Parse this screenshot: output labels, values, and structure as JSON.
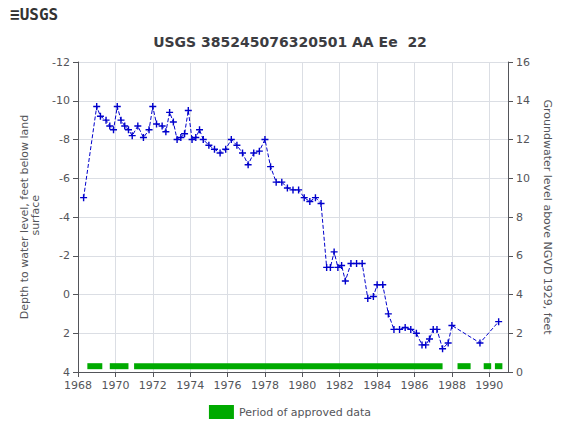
{
  "chart_data": {
    "type": "line",
    "title": "USGS 385245076320501 AA Ee  22",
    "annotations": [
      {
        "text": "≡USGS"
      }
    ],
    "ylabel": "Depth to water level, feet below land\n surface",
    "y2label": "Groundwater level above NGVD 1929, feet",
    "xlim": [
      1968,
      1991
    ],
    "xticks": [
      1968,
      1970,
      1972,
      1974,
      1976,
      1978,
      1980,
      1982,
      1984,
      1986,
      1988,
      1990
    ],
    "ylim": [
      4,
      -12
    ],
    "yticks": [
      4,
      2,
      0,
      -2,
      -4,
      -6,
      -8,
      -10,
      -12
    ],
    "y2lim": [
      0,
      16
    ],
    "y2ticks": [
      0,
      2,
      4,
      6,
      8,
      10,
      12,
      14,
      16
    ],
    "grid": true,
    "legend": "bottom",
    "x": [
      1968.3,
      1969.0,
      1969.2,
      1969.5,
      1969.7,
      1969.9,
      1970.1,
      1970.3,
      1970.5,
      1970.7,
      1970.9,
      1971.2,
      1971.5,
      1971.8,
      1972.0,
      1972.2,
      1972.5,
      1972.7,
      1972.9,
      1973.1,
      1973.3,
      1973.5,
      1973.7,
      1973.9,
      1974.1,
      1974.3,
      1974.5,
      1974.7,
      1975.0,
      1975.3,
      1975.6,
      1975.9,
      1976.2,
      1976.5,
      1976.8,
      1977.1,
      1977.4,
      1977.7,
      1978.0,
      1978.3,
      1978.6,
      1978.9,
      1979.2,
      1979.5,
      1979.8,
      1980.1,
      1980.4,
      1980.7,
      1981.0,
      1981.3,
      1981.5,
      1981.7,
      1981.9,
      1982.1,
      1982.3,
      1982.6,
      1982.9,
      1983.2,
      1983.5,
      1983.8,
      1984.0,
      1984.3,
      1984.6,
      1984.9,
      1985.2,
      1985.5,
      1985.8,
      1986.1,
      1986.4,
      1986.6,
      1986.8,
      1987.0,
      1987.2,
      1987.5,
      1987.8,
      1988.0,
      1989.5,
      1990.5
    ],
    "series": [
      {
        "type": "line",
        "color": "#0000CC",
        "line_style": "dashed",
        "marker": "plus",
        "values": [
          -5.0,
          -9.7,
          -9.2,
          -9.0,
          -8.7,
          -8.5,
          -9.7,
          -9.0,
          -8.7,
          -8.5,
          -8.2,
          -8.7,
          -8.1,
          -8.5,
          -9.7,
          -8.8,
          -8.7,
          -8.4,
          -9.4,
          -8.9,
          -8.0,
          -8.1,
          -8.3,
          -9.5,
          -8.0,
          -8.1,
          -8.5,
          -8.0,
          -7.7,
          -7.5,
          -7.3,
          -7.5,
          -8.0,
          -7.7,
          -7.3,
          -6.7,
          -7.3,
          -7.4,
          -8.0,
          -6.6,
          -5.8,
          -5.8,
          -5.5,
          -5.4,
          -5.4,
          -5.0,
          -4.8,
          -5.0,
          -4.7,
          -1.4,
          -1.4,
          -2.2,
          -1.4,
          -1.5,
          -0.7,
          -1.6,
          -1.6,
          -1.6,
          0.2,
          0.1,
          -0.5,
          -0.5,
          1.0,
          1.8,
          1.8,
          1.7,
          1.8,
          2.0,
          2.6,
          2.6,
          2.3,
          1.8,
          1.8,
          2.8,
          2.5,
          1.6,
          2.5,
          1.4
        ]
      },
      {
        "type": "range",
        "name": "Period of approved data",
        "color": "#00AA00",
        "y": 3.7,
        "ranges": [
          [
            1968.5,
            1969.3
          ],
          [
            1969.7,
            1970.7
          ],
          [
            1971.0,
            1987.5
          ],
          [
            1988.3,
            1989.0
          ],
          [
            1989.7,
            1990.1
          ],
          [
            1990.3,
            1990.7
          ]
        ]
      }
    ]
  }
}
